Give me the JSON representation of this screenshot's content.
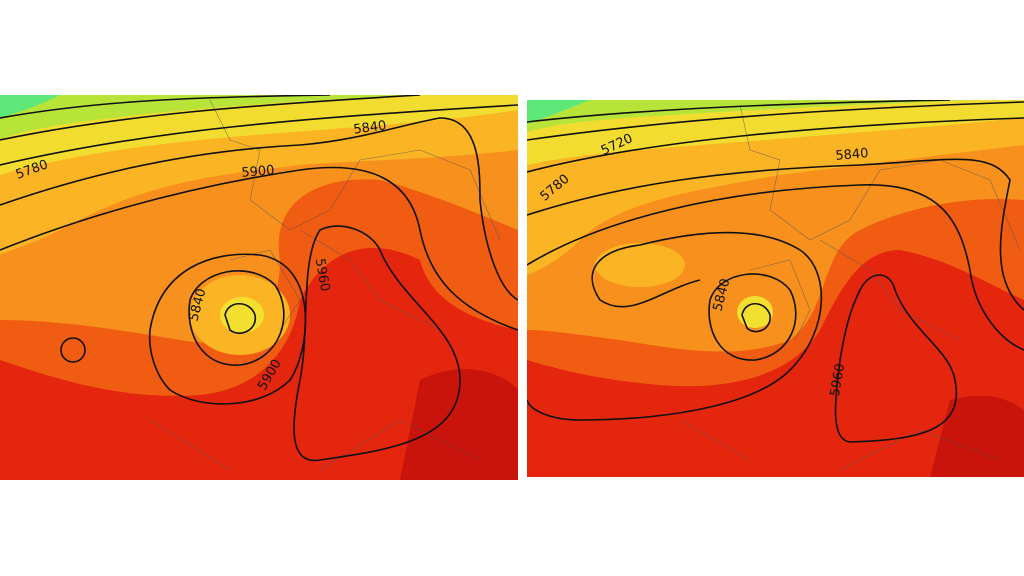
{
  "panels": [
    {
      "contour_labels": [
        "5780",
        "5900",
        "5840",
        "5840",
        "5900",
        "5960"
      ]
    },
    {
      "contour_labels": [
        "5780",
        "5720",
        "5840",
        "5840",
        "5960"
      ]
    }
  ]
}
